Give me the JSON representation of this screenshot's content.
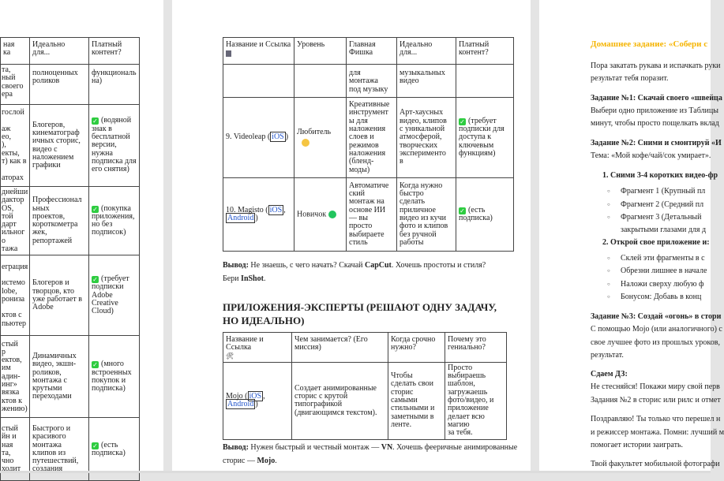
{
  "page1": {
    "table": {
      "header": [
        "ная\nка",
        "Идеально\nдля...",
        "Платный\nконтент?"
      ],
      "rows": [
        [
          "та,\nный\nсвоего\nера",
          "полноценных\nроликов",
          {
            "text": "функциональ\nна)"
          }
        ],
        [
          "гослой\n\nаж\nео,\n),\nекты,\nт) как в\n\nаторах",
          "Блогеров,\nкинематограф\nичных сторис,\nвидео с\nналожением\nграфики",
          {
            "check": true,
            "text": "(водяной\nзнак в\nбесплатной\nверсии, нужна\nподписка для\nего снятия)"
          }
        ],
        [
          "днейши\nдактор\nOS,\nтой\nдарт\nильного\nтажа",
          "Профессионал\nьных\nпроектов,\nкороткометра\nжек,\nрепортажей",
          {
            "check": true,
            "text": "(покупка\nприложения,\nно без\nподписок)"
          }
        ],
        [
          "еграция\n\nистемо\nlobe,\nрониза\n\nктов с\nпьютер",
          "Блогеров и\nтворцов, кто\nуже работает в\nAdobe",
          {
            "check": true,
            "text": "(требует\nподписки\nAdobe\nCreative\nCloud)"
          }
        ],
        [
          "стый\nр\nектов,\nим\nадин-\nинг»\nвязка\nктов к\nжению)",
          "Динамичных\nвидео, экшн-\nроликов,\nмонтажа с\nкрутыми\nпереходами",
          {
            "check": true,
            "text": "(много\nвстроенных\nпокупок и\nподписка)"
          }
        ],
        [
          "стый\nйн и\nная\nта,\nчно\nходит",
          "Быстрого и\nкрасивого\nмонтажа\nклипов из\nпутешествий,\nсоздания",
          {
            "check": true,
            "text": "(есть\nподписка)"
          }
        ]
      ]
    }
  },
  "page2": {
    "table1": {
      "header": [
        "Название и Ссылка",
        "Уровень",
        "Главная\nФишка",
        "Идеально\nдля...",
        "Платный\nконтент?"
      ],
      "cont_row": [
        "",
        "",
        "для\nмонтажа\nпод музыку",
        "музыкальных\nвидео",
        ""
      ],
      "rows": [
        {
          "num": "9.",
          "name": "Videoleap",
          "links": [
            "iOS"
          ],
          "level": "Любитель",
          "level_color": "#f5c542",
          "feature": "Креативные\nинструмент\nы для\nналожения\nслоев и\nрежимов\nналожения\n(бленд-\nмоды)",
          "ideal": "Арт-хаусных\nвидео, клипов\nс уникальной\nатмосферой,\nтворческих\nэксперименто\nв",
          "paid": "(требует\nподписки для\nдоступа к\nключевым\nфункциям)"
        },
        {
          "num": "10.",
          "name": "Magisto",
          "links": [
            "iOS",
            "Android"
          ],
          "level": "Новичок",
          "level_color": "#22c55e",
          "feature": "Автоматиче\nский\nмонтаж на\nоснове ИИ\n— вы\nпросто\nвыбираете\nстиль",
          "ideal": "Когда нужно\nбыстро\nсделать\nприличное\nвидео из кучи\nфото и клипов\nбез ручной\nработы",
          "paid": "(есть\nподписка)"
        }
      ]
    },
    "conclusion1": {
      "label": "Вывод:",
      "t1": " Не знаешь, с чего начать? Скачай ",
      "b1": "CapCut",
      "t2": ". Хочешь простоты и стиля?",
      "t3": "Бери ",
      "b2": "InShot",
      "t4": "."
    },
    "heading": "ПРИЛОЖЕНИЯ-ЭКСПЕРТЫ (РЕШАЮТ ОДНУ ЗАДАЧУ, НО ИДЕАЛЬНО)",
    "table2": {
      "header": [
        "Название и Ссылка",
        "Чем занимается? (Его\nмиссия)",
        "Когда срочно\nнужно?",
        "Почему это\nгениально?"
      ],
      "row": {
        "name": "Mojo",
        "links": [
          "iOS",
          "Android"
        ],
        "mission": "Создает анимированные\nсторис с крутой\nтипографикой\n(двигающимся текстом).",
        "when": "Чтобы\nсделать свои\nсторис\nсамыми\nстильными и\nзаметными в\nленте.",
        "why": "Просто\nвыбираешь\nшаблон,\nзагружаешь\nфото/видео, и\nприложение\nделает всю магию\nза тебя."
      }
    },
    "conclusion2": {
      "label": "Вывод:",
      "t1": " Нужен быстрый и честный монтаж — ",
      "b1": "VN",
      "t2": ". Хочешь фееричные анимированные",
      "t3": "сторис — ",
      "b2": "Mojo",
      "t4": "."
    }
  },
  "page3": {
    "heading": "Домашнее задание: «Собери с",
    "lines": [
      {
        "text": "Пора закатать рукава и испачкать руки"
      },
      {
        "text": "результат тебя поразит."
      },
      {
        "text": "Задание №1: Скачай своего «швейца",
        "bold": true
      },
      {
        "text": "Выбери одно приложение из Таблицы"
      },
      {
        "text": "минут, чтобы просто пощелкать вклад"
      },
      {
        "text": "Задание №2: Сними и смонтируй «И",
        "bold": true
      },
      {
        "text": "Тема: «Мой кофе/чай/сок умирает»."
      },
      {
        "text": "1.   Сними 3-4 коротких видео-фр",
        "bold": true
      },
      {
        "text": "Фрагмент 1 (Крупный пл",
        "bullet": true
      },
      {
        "text": "Фрагмент 2 (Средний пл",
        "bullet": true
      },
      {
        "text": "Фрагмент 3 (Детальный",
        "bullet": true
      },
      {
        "text": "закрытыми глазами для д",
        "indent": true
      },
      {
        "text": "2.   Открой свое приложение и:",
        "bold": true
      },
      {
        "text": "Склей эти фрагменты в с",
        "bullet": true
      },
      {
        "text": "Обрезни лишнее в начале",
        "bullet": true
      },
      {
        "text": "Наложи сверху любую ф",
        "bullet": true
      },
      {
        "text": "Бонусом: Добавь в конц",
        "bullet": true
      },
      {
        "text": "Задание №3: Создай «огонь» в стори",
        "bold": true
      },
      {
        "text": "С помощью Mojo (или аналогичного) с"
      },
      {
        "text": "свое лучшее фото из прошлых уроков,"
      },
      {
        "text": "результат."
      },
      {
        "text": "Сдаем ДЗ:",
        "bold": true
      },
      {
        "text": "Не стесняйся! Покажи миру свой перв"
      },
      {
        "text": "Задания №2 в сторис или рилс и отмет"
      },
      {
        "text": "Поздравляю! Ты только что перешел н"
      },
      {
        "text": "и режиссер монтажа. Помни: лучший м"
      },
      {
        "text": "помогает истории заиграть."
      },
      {
        "text": "Твой факультет мобильной фотографи"
      }
    ]
  },
  "colors": {
    "heading": "#f5b400",
    "check": "#2ecc40",
    "link": "#2255cc"
  }
}
